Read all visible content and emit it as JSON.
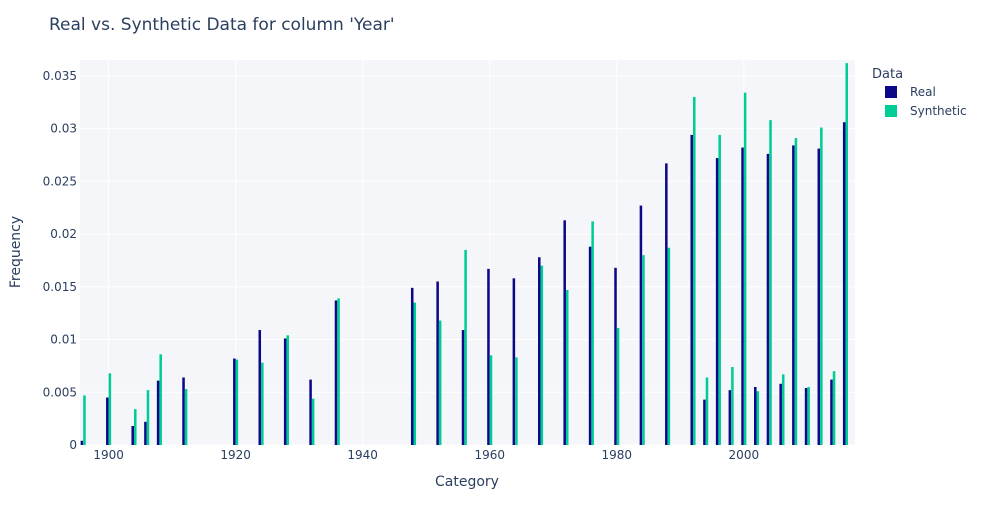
{
  "chart_data": {
    "type": "bar",
    "title": "Real vs. Synthetic Data for column 'Year'",
    "xlabel": "Category",
    "ylabel": "Frequency",
    "xlim": [
      1895.5,
      2017.5
    ],
    "ylim": [
      0,
      0.0365
    ],
    "x_ticks": [
      1900,
      1920,
      1940,
      1960,
      1980,
      2000
    ],
    "y_ticks": [
      0,
      0.005,
      0.01,
      0.015,
      0.02,
      0.025,
      0.03,
      0.035
    ],
    "y_tick_labels": [
      "0",
      "0.005",
      "0.01",
      "0.015",
      "0.02",
      "0.025",
      "0.03",
      "0.035"
    ],
    "legend": {
      "title": "Data",
      "position": "top-right"
    },
    "series": [
      {
        "name": "Real",
        "color": "#0d0887",
        "points": [
          [
            1896,
            0.0004
          ],
          [
            1900,
            0.0045
          ],
          [
            1904,
            0.0018
          ],
          [
            1906,
            0.0022
          ],
          [
            1908,
            0.0061
          ],
          [
            1912,
            0.0064
          ],
          [
            1920,
            0.0082
          ],
          [
            1924,
            0.0109
          ],
          [
            1928,
            0.0101
          ],
          [
            1932,
            0.0062
          ],
          [
            1936,
            0.0137
          ],
          [
            1948,
            0.0149
          ],
          [
            1952,
            0.0155
          ],
          [
            1956,
            0.0109
          ],
          [
            1960,
            0.0167
          ],
          [
            1964,
            0.0158
          ],
          [
            1968,
            0.0178
          ],
          [
            1972,
            0.0213
          ],
          [
            1976,
            0.0188
          ],
          [
            1980,
            0.0168
          ],
          [
            1984,
            0.0227
          ],
          [
            1988,
            0.0267
          ],
          [
            1992,
            0.0294
          ],
          [
            1994,
            0.0043
          ],
          [
            1996,
            0.0272
          ],
          [
            1998,
            0.0052
          ],
          [
            2000,
            0.0282
          ],
          [
            2002,
            0.0055
          ],
          [
            2004,
            0.0276
          ],
          [
            2006,
            0.0058
          ],
          [
            2008,
            0.0284
          ],
          [
            2010,
            0.0054
          ],
          [
            2012,
            0.0281
          ],
          [
            2014,
            0.0062
          ],
          [
            2016,
            0.0306
          ]
        ]
      },
      {
        "name": "Synthetic",
        "color": "#00cc96",
        "points": [
          [
            1896,
            0.0047
          ],
          [
            1900,
            0.0068
          ],
          [
            1904,
            0.0034
          ],
          [
            1906,
            0.0052
          ],
          [
            1908,
            0.0086
          ],
          [
            1912,
            0.0053
          ],
          [
            1920,
            0.0081
          ],
          [
            1924,
            0.0078
          ],
          [
            1928,
            0.0104
          ],
          [
            1932,
            0.0044
          ],
          [
            1936,
            0.0139
          ],
          [
            1948,
            0.0135
          ],
          [
            1952,
            0.0118
          ],
          [
            1956,
            0.0185
          ],
          [
            1960,
            0.0085
          ],
          [
            1964,
            0.0083
          ],
          [
            1968,
            0.017
          ],
          [
            1972,
            0.0147
          ],
          [
            1976,
            0.0212
          ],
          [
            1980,
            0.0111
          ],
          [
            1984,
            0.018
          ],
          [
            1988,
            0.0187
          ],
          [
            1992,
            0.033
          ],
          [
            1994,
            0.0064
          ],
          [
            1996,
            0.0294
          ],
          [
            1998,
            0.0074
          ],
          [
            2000,
            0.0334
          ],
          [
            2002,
            0.0051
          ],
          [
            2004,
            0.0308
          ],
          [
            2006,
            0.0067
          ],
          [
            2008,
            0.0291
          ],
          [
            2010,
            0.0055
          ],
          [
            2012,
            0.0301
          ],
          [
            2014,
            0.007
          ],
          [
            2016,
            0.0362
          ]
        ]
      }
    ]
  }
}
